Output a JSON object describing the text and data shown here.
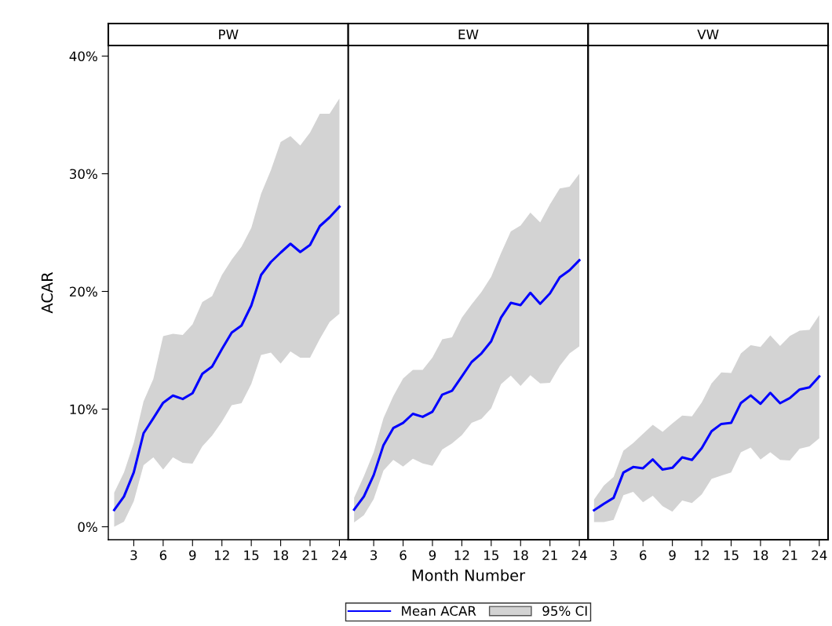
{
  "chart_data": [
    {
      "type": "line",
      "title": "PW",
      "ylabel": "ACAR",
      "x": [
        1,
        2,
        3,
        4,
        5,
        6,
        7,
        8,
        9,
        10,
        11,
        12,
        13,
        14,
        15,
        16,
        17,
        18,
        19,
        20,
        21,
        22,
        23,
        24
      ],
      "xlim": [
        0.4,
        24.9
      ],
      "xticks": [
        3,
        6,
        9,
        12,
        15,
        18,
        21,
        24
      ],
      "ylim": [
        -1.1,
        40.9
      ],
      "yticks": [
        {
          "value": 0,
          "label": "0%"
        },
        {
          "value": 10,
          "label": "10%"
        },
        {
          "value": 20,
          "label": "20%"
        },
        {
          "value": 30,
          "label": "30%"
        },
        {
          "value": 40,
          "label": "40%"
        }
      ],
      "series": [
        {
          "color": "#0000ff",
          "values": [
            1.42,
            2.58,
            4.62,
            7.95,
            9.23,
            10.54,
            11.15,
            10.86,
            11.35,
            13.0,
            13.62,
            15.1,
            16.5,
            17.1,
            18.8,
            21.4,
            22.5,
            23.3,
            24.05,
            23.35,
            23.95,
            25.55,
            26.3,
            27.2
          ],
          "lower": [
            0.0,
            0.43,
            2.16,
            5.24,
            5.9,
            4.87,
            5.9,
            5.43,
            5.37,
            6.84,
            7.75,
            8.93,
            10.33,
            10.5,
            12.14,
            14.6,
            14.8,
            13.86,
            14.9,
            14.36,
            14.36,
            15.96,
            17.4,
            18.1
          ],
          "upper": [
            2.9,
            4.62,
            7.13,
            10.66,
            12.56,
            16.2,
            16.4,
            16.3,
            17.2,
            19.1,
            19.6,
            21.4,
            22.7,
            23.8,
            25.4,
            28.3,
            30.3,
            32.7,
            33.2,
            32.4,
            33.5,
            35.1,
            35.1,
            36.4
          ]
        }
      ]
    },
    {
      "type": "line",
      "title": "EW",
      "xlabel": "Month Number",
      "legend": "bottom",
      "annotations": [
        "95% CI"
      ],
      "tick_labels": "x",
      "x": [
        1,
        2,
        3,
        4,
        5,
        6,
        7,
        8,
        9,
        10,
        11,
        12,
        13,
        14,
        15,
        16,
        17,
        18,
        19,
        20,
        21,
        22,
        23,
        24
      ],
      "xlim": [
        0.4,
        24.9
      ],
      "xticks": [
        3,
        6,
        9,
        12,
        15,
        18,
        21,
        24
      ],
      "ylim": [
        -1.1,
        40.9
      ],
      "series": [
        {
          "name": "Mean ACAR",
          "color": "#0000ff",
          "values": [
            1.46,
            2.58,
            4.39,
            6.94,
            8.39,
            8.83,
            9.6,
            9.34,
            9.78,
            11.23,
            11.56,
            12.78,
            14.0,
            14.73,
            15.77,
            17.77,
            19.03,
            18.84,
            19.88,
            18.95,
            19.83,
            21.2,
            21.8,
            22.65
          ],
          "lower": [
            0.36,
            0.98,
            2.35,
            4.79,
            5.68,
            5.12,
            5.79,
            5.39,
            5.19,
            6.57,
            7.08,
            7.79,
            8.83,
            9.16,
            10.07,
            12.11,
            12.85,
            11.96,
            12.89,
            12.18,
            12.23,
            13.66,
            14.73,
            15.33
          ],
          "upper": [
            2.46,
            4.3,
            6.34,
            9.23,
            11.1,
            12.6,
            13.33,
            13.33,
            14.38,
            15.93,
            16.1,
            17.77,
            18.9,
            19.95,
            21.25,
            23.25,
            25.1,
            25.6,
            26.7,
            25.87,
            27.4,
            28.75,
            28.9,
            30.0
          ]
        }
      ]
    },
    {
      "type": "line",
      "title": "VW",
      "tick_labels": "x",
      "x": [
        1,
        2,
        3,
        4,
        5,
        6,
        7,
        8,
        9,
        10,
        11,
        12,
        13,
        14,
        15,
        16,
        17,
        18,
        19,
        20,
        21,
        22,
        23,
        24
      ],
      "xlim": [
        0.4,
        24.9
      ],
      "xticks": [
        3,
        6,
        9,
        12,
        15,
        18,
        21,
        24
      ],
      "ylim": [
        -1.1,
        40.9
      ],
      "series": [
        {
          "color": "#0000ff",
          "values": [
            1.4,
            1.95,
            2.46,
            4.61,
            5.08,
            4.97,
            5.72,
            4.86,
            5.01,
            5.9,
            5.68,
            6.68,
            8.12,
            8.74,
            8.83,
            10.52,
            11.16,
            10.45,
            11.38,
            10.5,
            10.94,
            11.67,
            11.85,
            12.78
          ],
          "lower": [
            0.4,
            0.4,
            0.58,
            2.68,
            2.97,
            2.08,
            2.64,
            1.75,
            1.29,
            2.24,
            2.02,
            2.75,
            4.06,
            4.35,
            4.61,
            6.34,
            6.74,
            5.72,
            6.34,
            5.68,
            5.64,
            6.64,
            6.84,
            7.52
          ],
          "upper": [
            2.31,
            3.5,
            4.24,
            6.46,
            7.12,
            7.9,
            8.67,
            8.07,
            8.79,
            9.45,
            9.38,
            10.56,
            12.18,
            13.11,
            13.07,
            14.73,
            15.44,
            15.29,
            16.26,
            15.37,
            16.22,
            16.66,
            16.73,
            17.99
          ]
        }
      ]
    }
  ]
}
